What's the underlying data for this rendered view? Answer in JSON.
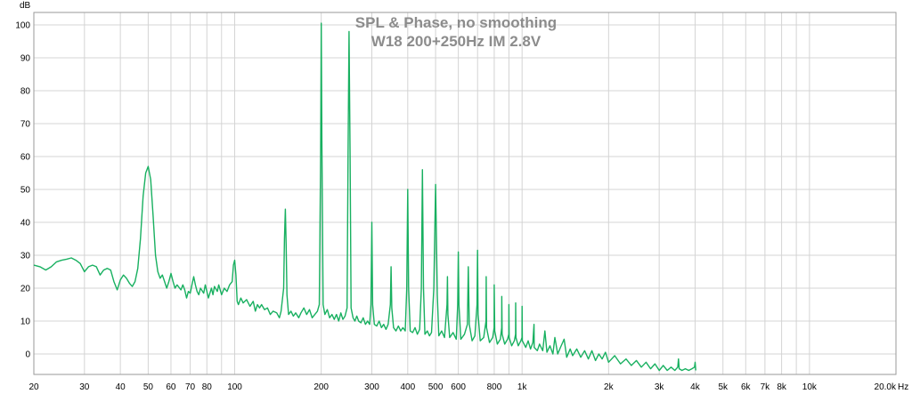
{
  "chart_data": {
    "type": "line",
    "title": "SPL & Phase, no smoothing",
    "subtitle": "W18 200+250Hz IM 2.8V",
    "ylabel": "dB",
    "xunit": "Hz",
    "xscale": "log",
    "xlim": [
      20,
      20000
    ],
    "ylim": [
      -5,
      103
    ],
    "grid": true,
    "line_color": "#18b060",
    "y_ticks": [
      {
        "value": 100,
        "label": "100"
      },
      {
        "value": 90,
        "label": "90"
      },
      {
        "value": 80,
        "label": "80"
      },
      {
        "value": 70,
        "label": "70"
      },
      {
        "value": 60,
        "label": "60"
      },
      {
        "value": 50,
        "label": "50"
      },
      {
        "value": 40,
        "label": "40"
      },
      {
        "value": 30,
        "label": "30"
      },
      {
        "value": 20,
        "label": "20"
      },
      {
        "value": 10,
        "label": "10"
      },
      {
        "value": 0,
        "label": "0"
      }
    ],
    "x_ticks": [
      {
        "value": 20,
        "label": "20"
      },
      {
        "value": 30,
        "label": "30"
      },
      {
        "value": 40,
        "label": "40"
      },
      {
        "value": 50,
        "label": "50"
      },
      {
        "value": 60,
        "label": "60"
      },
      {
        "value": 70,
        "label": "70"
      },
      {
        "value": 80,
        "label": "80"
      },
      {
        "value": 100,
        "label": "100"
      },
      {
        "value": 200,
        "label": "200"
      },
      {
        "value": 300,
        "label": "300"
      },
      {
        "value": 400,
        "label": "400"
      },
      {
        "value": 500,
        "label": "500"
      },
      {
        "value": 600,
        "label": "600"
      },
      {
        "value": 800,
        "label": "800"
      },
      {
        "value": 1000,
        "label": "1k"
      },
      {
        "value": 2000,
        "label": "2k"
      },
      {
        "value": 3000,
        "label": "3k"
      },
      {
        "value": 4000,
        "label": "4k"
      },
      {
        "value": 5000,
        "label": "5k"
      },
      {
        "value": 6000,
        "label": "6k"
      },
      {
        "value": 7000,
        "label": "7k"
      },
      {
        "value": 8000,
        "label": "8k"
      },
      {
        "value": 10000,
        "label": "10k"
      },
      {
        "value": 20000,
        "label": "20.0k"
      }
    ],
    "x_grid_lines": [
      20,
      30,
      40,
      50,
      60,
      70,
      80,
      90,
      100,
      200,
      300,
      400,
      500,
      600,
      700,
      800,
      900,
      1000,
      2000,
      3000,
      4000,
      5000,
      6000,
      7000,
      8000,
      9000,
      10000,
      20000
    ],
    "series": [
      {
        "points": [
          [
            20,
            27
          ],
          [
            21,
            26.5
          ],
          [
            22,
            25.5
          ],
          [
            23,
            26.5
          ],
          [
            24,
            28
          ],
          [
            25,
            28.5
          ],
          [
            26,
            28.8
          ],
          [
            27,
            29.2
          ],
          [
            28,
            28.5
          ],
          [
            29,
            27.5
          ],
          [
            30,
            25
          ],
          [
            31,
            26.5
          ],
          [
            32,
            27
          ],
          [
            33,
            26.5
          ],
          [
            34,
            24
          ],
          [
            35,
            25.5
          ],
          [
            36,
            26
          ],
          [
            37,
            25.5
          ],
          [
            38,
            22
          ],
          [
            39,
            19.5
          ],
          [
            40,
            22.5
          ],
          [
            41,
            24
          ],
          [
            42,
            23
          ],
          [
            43,
            21.5
          ],
          [
            44,
            20.5
          ],
          [
            45,
            22
          ],
          [
            46,
            26
          ],
          [
            47,
            35
          ],
          [
            48,
            48
          ],
          [
            49,
            55
          ],
          [
            50,
            57
          ],
          [
            51,
            53
          ],
          [
            52,
            42
          ],
          [
            53,
            30
          ],
          [
            54,
            25
          ],
          [
            55,
            23
          ],
          [
            56,
            24
          ],
          [
            57,
            22
          ],
          [
            58,
            20
          ],
          [
            59,
            22
          ],
          [
            60,
            24.5
          ],
          [
            61,
            22
          ],
          [
            62,
            20
          ],
          [
            63,
            21
          ],
          [
            65,
            19.5
          ],
          [
            66,
            21
          ],
          [
            67,
            19.5
          ],
          [
            68,
            17
          ],
          [
            69,
            19
          ],
          [
            70,
            18.5
          ],
          [
            71,
            21
          ],
          [
            72,
            23.5
          ],
          [
            73,
            21
          ],
          [
            74,
            19
          ],
          [
            75,
            18
          ],
          [
            76,
            20
          ],
          [
            78,
            18.5
          ],
          [
            79,
            21
          ],
          [
            80,
            19
          ],
          [
            81,
            17
          ],
          [
            83,
            20
          ],
          [
            84,
            18
          ],
          [
            85,
            20.5
          ],
          [
            87,
            19
          ],
          [
            88,
            21
          ],
          [
            90,
            18
          ],
          [
            92,
            20
          ],
          [
            94,
            19
          ],
          [
            96,
            21
          ],
          [
            98,
            22
          ],
          [
            99,
            27
          ],
          [
            100,
            28.5
          ],
          [
            101,
            24
          ],
          [
            102,
            16
          ],
          [
            103,
            15
          ],
          [
            105,
            17
          ],
          [
            107,
            15.5
          ],
          [
            110,
            16.5
          ],
          [
            113,
            14.5
          ],
          [
            116,
            16
          ],
          [
            118,
            13
          ],
          [
            120,
            15
          ],
          [
            122,
            14
          ],
          [
            124,
            15
          ],
          [
            127,
            13.5
          ],
          [
            130,
            14
          ],
          [
            133,
            12
          ],
          [
            136,
            13
          ],
          [
            140,
            12.5
          ],
          [
            143,
            11
          ],
          [
            145,
            13
          ],
          [
            148,
            20
          ],
          [
            149,
            35
          ],
          [
            150,
            44
          ],
          [
            151,
            33
          ],
          [
            152,
            18
          ],
          [
            154,
            12
          ],
          [
            157,
            13
          ],
          [
            160,
            11.5
          ],
          [
            163,
            12.5
          ],
          [
            167,
            11
          ],
          [
            170,
            12.5
          ],
          [
            174,
            14
          ],
          [
            178,
            12
          ],
          [
            182,
            13.5
          ],
          [
            186,
            11
          ],
          [
            190,
            12
          ],
          [
            194,
            13
          ],
          [
            197,
            15
          ],
          [
            199,
            60
          ],
          [
            200,
            100.5
          ],
          [
            201,
            65
          ],
          [
            203,
            15
          ],
          [
            206,
            12
          ],
          [
            210,
            13.5
          ],
          [
            214,
            11
          ],
          [
            218,
            12
          ],
          [
            222,
            10.5
          ],
          [
            226,
            12
          ],
          [
            230,
            10
          ],
          [
            234,
            12.5
          ],
          [
            238,
            10.5
          ],
          [
            242,
            11.5
          ],
          [
            246,
            14
          ],
          [
            248,
            60
          ],
          [
            250,
            98
          ],
          [
            252,
            60
          ],
          [
            254,
            14
          ],
          [
            258,
            11
          ],
          [
            262,
            10
          ],
          [
            266,
            11.5
          ],
          [
            270,
            10
          ],
          [
            275,
            9.5
          ],
          [
            280,
            11
          ],
          [
            285,
            9
          ],
          [
            290,
            10
          ],
          [
            295,
            9
          ],
          [
            298,
            15
          ],
          [
            300,
            40
          ],
          [
            302,
            15
          ],
          [
            306,
            9
          ],
          [
            312,
            8.5
          ],
          [
            318,
            10
          ],
          [
            324,
            8
          ],
          [
            330,
            9
          ],
          [
            336,
            7.5
          ],
          [
            342,
            9
          ],
          [
            348,
            15
          ],
          [
            350,
            26.5
          ],
          [
            352,
            14
          ],
          [
            357,
            8
          ],
          [
            364,
            7
          ],
          [
            371,
            8.5
          ],
          [
            378,
            7
          ],
          [
            385,
            8
          ],
          [
            392,
            7
          ],
          [
            397,
            20
          ],
          [
            400,
            50
          ],
          [
            403,
            20
          ],
          [
            408,
            7
          ],
          [
            416,
            6.5
          ],
          [
            424,
            8
          ],
          [
            432,
            6
          ],
          [
            440,
            7.5
          ],
          [
            446,
            20
          ],
          [
            450,
            56
          ],
          [
            454,
            20
          ],
          [
            459,
            6
          ],
          [
            468,
            7
          ],
          [
            476,
            5.5
          ],
          [
            484,
            6.5
          ],
          [
            493,
            20
          ],
          [
            500,
            51.5
          ],
          [
            507,
            18
          ],
          [
            513,
            5.5
          ],
          [
            525,
            7
          ],
          [
            537,
            5
          ],
          [
            548,
            15
          ],
          [
            550,
            23.5
          ],
          [
            552,
            12
          ],
          [
            560,
            5
          ],
          [
            575,
            6.5
          ],
          [
            590,
            4.5
          ],
          [
            597,
            15
          ],
          [
            600,
            31
          ],
          [
            603,
            15
          ],
          [
            612,
            4.5
          ],
          [
            630,
            6
          ],
          [
            645,
            9
          ],
          [
            650,
            26.5
          ],
          [
            655,
            9
          ],
          [
            670,
            4
          ],
          [
            685,
            5.5
          ],
          [
            697,
            15
          ],
          [
            700,
            31.5
          ],
          [
            703,
            12
          ],
          [
            715,
            4
          ],
          [
            735,
            5
          ],
          [
            749,
            10
          ],
          [
            750,
            23.5
          ],
          [
            752,
            8
          ],
          [
            770,
            3.5
          ],
          [
            790,
            5
          ],
          [
            799,
            8
          ],
          [
            800,
            21
          ],
          [
            803,
            7
          ],
          [
            820,
            3
          ],
          [
            840,
            4.5
          ],
          [
            849,
            8
          ],
          [
            850,
            17.5
          ],
          [
            852,
            6
          ],
          [
            870,
            3
          ],
          [
            890,
            4.5
          ],
          [
            899,
            6
          ],
          [
            900,
            15
          ],
          [
            902,
            5
          ],
          [
            920,
            2.5
          ],
          [
            940,
            4
          ],
          [
            949,
            6
          ],
          [
            950,
            15.5
          ],
          [
            952,
            5
          ],
          [
            970,
            2.5
          ],
          [
            990,
            4
          ],
          [
            999,
            5
          ],
          [
            1000,
            14.5
          ],
          [
            1002,
            4
          ],
          [
            1030,
            2
          ],
          [
            1050,
            4
          ],
          [
            1070,
            1.5
          ],
          [
            1090,
            3.5
          ],
          [
            1100,
            9
          ],
          [
            1102,
            2
          ],
          [
            1130,
            1
          ],
          [
            1150,
            3
          ],
          [
            1180,
            1
          ],
          [
            1200,
            7
          ],
          [
            1220,
            0.5
          ],
          [
            1250,
            2.5
          ],
          [
            1280,
            0
          ],
          [
            1300,
            5
          ],
          [
            1330,
            0
          ],
          [
            1360,
            2
          ],
          [
            1400,
            4.5
          ],
          [
            1430,
            -1
          ],
          [
            1470,
            1.5
          ],
          [
            1500,
            -0.5
          ],
          [
            1550,
            1.5
          ],
          [
            1600,
            -1
          ],
          [
            1650,
            1
          ],
          [
            1700,
            -1.5
          ],
          [
            1750,
            1
          ],
          [
            1800,
            -2
          ],
          [
            1850,
            0
          ],
          [
            1900,
            -1.5
          ],
          [
            1950,
            0.5
          ],
          [
            2000,
            -2.5
          ],
          [
            2100,
            -0.5
          ],
          [
            2200,
            -3
          ],
          [
            2300,
            -1.5
          ],
          [
            2400,
            -3.5
          ],
          [
            2500,
            -2
          ],
          [
            2600,
            -4
          ],
          [
            2700,
            -2.5
          ],
          [
            2800,
            -4.5
          ],
          [
            2900,
            -3
          ],
          [
            3000,
            -5
          ],
          [
            3100,
            -3.5
          ],
          [
            3200,
            -5
          ],
          [
            3300,
            -4
          ],
          [
            3400,
            -5
          ],
          [
            3480,
            -4
          ],
          [
            3500,
            -1.5
          ],
          [
            3520,
            -4.5
          ],
          [
            3600,
            -5
          ],
          [
            3700,
            -4.5
          ],
          [
            3800,
            -5
          ],
          [
            3900,
            -4.5
          ],
          [
            3980,
            -4
          ],
          [
            4000,
            -2.5
          ],
          [
            4020,
            -5
          ]
        ]
      }
    ]
  }
}
